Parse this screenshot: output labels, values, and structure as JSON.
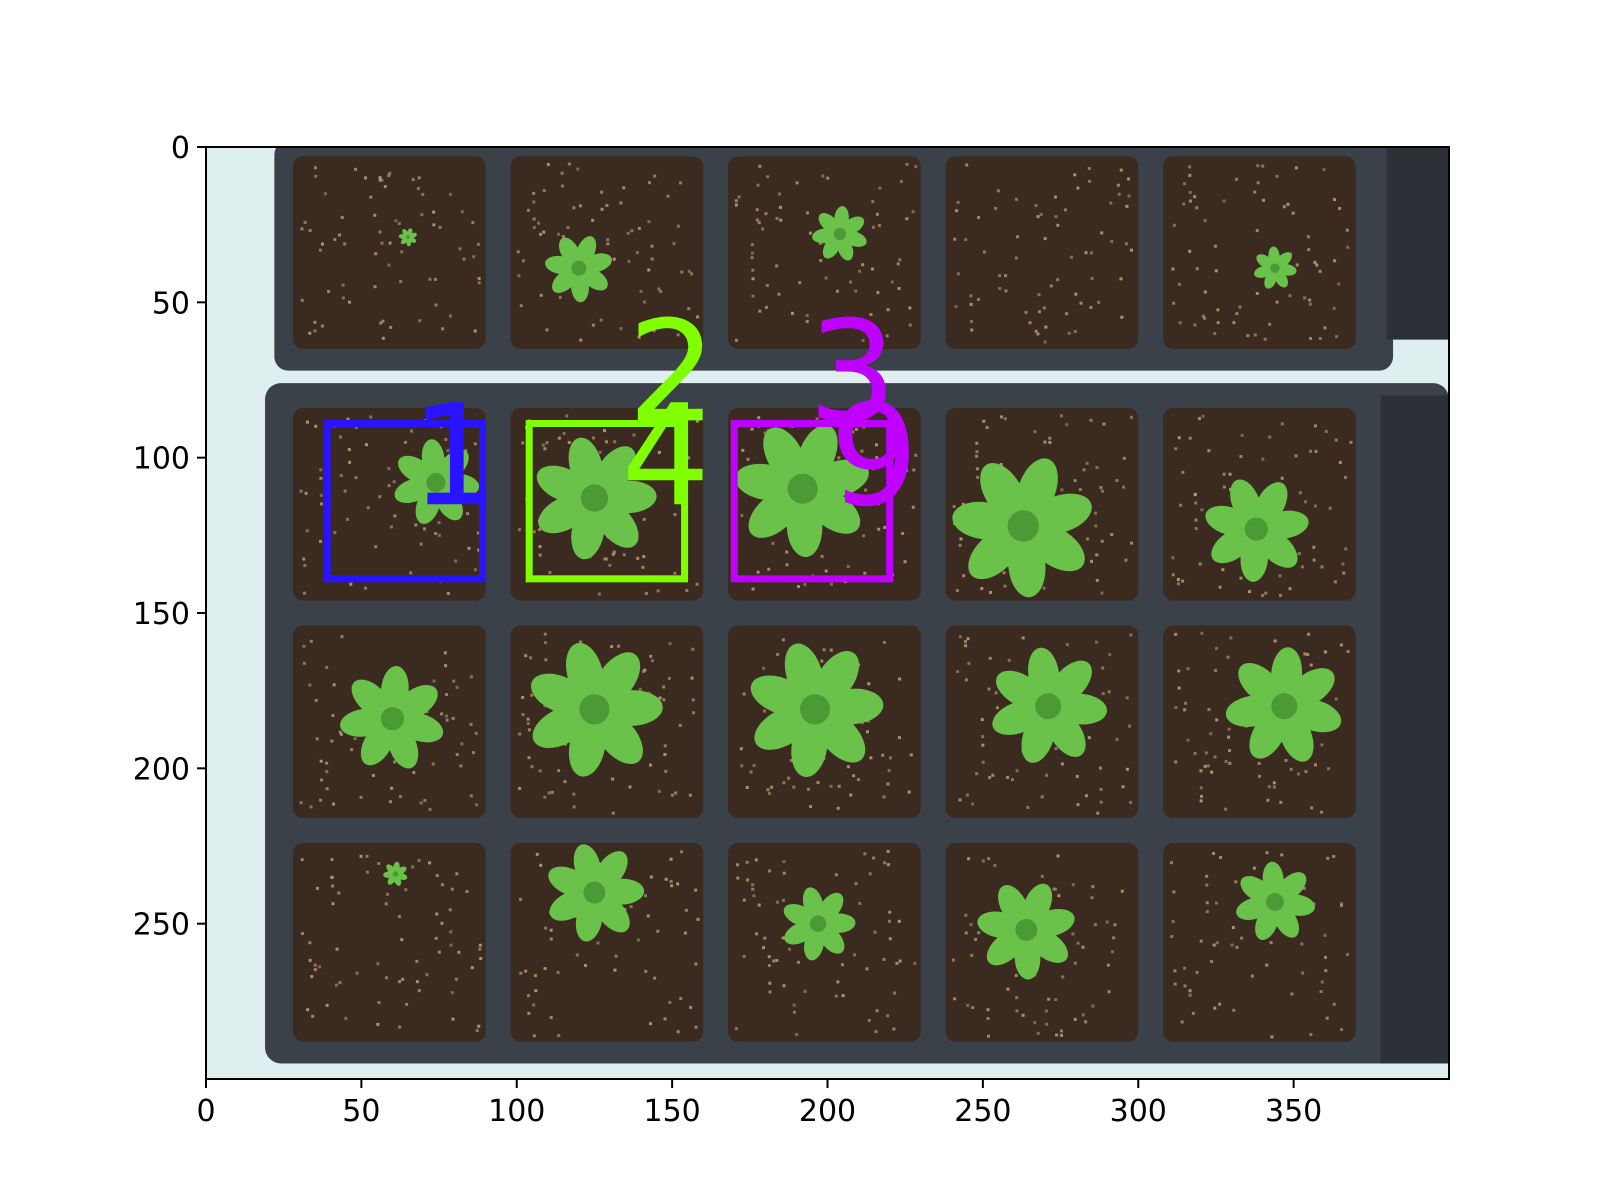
{
  "chart_data": {
    "type": "image",
    "xlim": [
      0,
      400
    ],
    "ylim": [
      300,
      0
    ],
    "xticks": [
      "0",
      "50",
      "100",
      "150",
      "200",
      "250",
      "300",
      "350"
    ],
    "yticks": [
      "0",
      "50",
      "100",
      "150",
      "200",
      "250"
    ],
    "xtick_values": [
      0,
      50,
      100,
      150,
      200,
      250,
      300,
      350
    ],
    "ytick_values": [
      0,
      50,
      100,
      150,
      200,
      250
    ],
    "image": {
      "description_free": true,
      "tray_rows": [
        {
          "y_range": [
            0,
            72
          ],
          "cells_y": [
            3,
            65
          ]
        },
        {
          "y_range": [
            78,
            293
          ],
          "cells_y": [
            [
              84,
              146
            ],
            [
              154,
              216
            ],
            [
              224,
              288
            ]
          ]
        }
      ],
      "cells_x": [
        [
          28,
          90
        ],
        [
          98,
          160
        ],
        [
          168,
          230
        ],
        [
          238,
          300
        ],
        [
          308,
          370
        ]
      ],
      "plants": [
        {
          "x": 65,
          "y": 29,
          "r": 3
        },
        {
          "x": 120,
          "y": 39,
          "r": 11
        },
        {
          "x": 204,
          "y": 28,
          "r": 9
        },
        {
          "x": 344,
          "y": 39,
          "r": 7
        },
        {
          "x": 74,
          "y": 108,
          "r": 14
        },
        {
          "x": 125,
          "y": 113,
          "r": 20
        },
        {
          "x": 192,
          "y": 110,
          "r": 22
        },
        {
          "x": 263,
          "y": 122,
          "r": 23
        },
        {
          "x": 338,
          "y": 123,
          "r": 17
        },
        {
          "x": 60,
          "y": 184,
          "r": 17
        },
        {
          "x": 125,
          "y": 181,
          "r": 22
        },
        {
          "x": 196,
          "y": 181,
          "r": 22
        },
        {
          "x": 271,
          "y": 180,
          "r": 19
        },
        {
          "x": 347,
          "y": 180,
          "r": 19
        },
        {
          "x": 61,
          "y": 234,
          "r": 4
        },
        {
          "x": 125,
          "y": 240,
          "r": 16
        },
        {
          "x": 197,
          "y": 250,
          "r": 12
        },
        {
          "x": 264,
          "y": 252,
          "r": 16
        },
        {
          "x": 344,
          "y": 243,
          "r": 13
        }
      ]
    },
    "boxes": [
      {
        "label": "1",
        "x0": 39,
        "y0": 89,
        "x1": 89,
        "y1": 139,
        "color": "#2a14ff"
      },
      {
        "label": "2",
        "x0": 104,
        "y0": 89,
        "x1": 154,
        "y1": 139,
        "color": "#80ff00"
      },
      {
        "label": "3",
        "x0": 170,
        "y0": 89,
        "x1": 220,
        "y1": 139,
        "color": "#c000ff"
      }
    ],
    "annotations": [
      {
        "text": "1",
        "x": 80,
        "y": 115,
        "color": "#2a14ff"
      },
      {
        "text": "2",
        "x": 150,
        "y": 88,
        "color": "#80ff00"
      },
      {
        "text": "4",
        "x": 148,
        "y": 115,
        "color": "#80ff00"
      },
      {
        "text": "3",
        "x": 208,
        "y": 88,
        "color": "#c000ff"
      },
      {
        "text": "9",
        "x": 215,
        "y": 115,
        "color": "#c000ff"
      }
    ]
  },
  "colors": {
    "background": "#ffffff",
    "tray": "#3a4149",
    "tray_light": "#4a525a",
    "soil": "#3b2a20",
    "soil_speck": "#b89a74",
    "plant": "#6bc24a",
    "plant_dark": "#4c9a35",
    "bench": "#dfeeef",
    "axis": "#000000"
  }
}
